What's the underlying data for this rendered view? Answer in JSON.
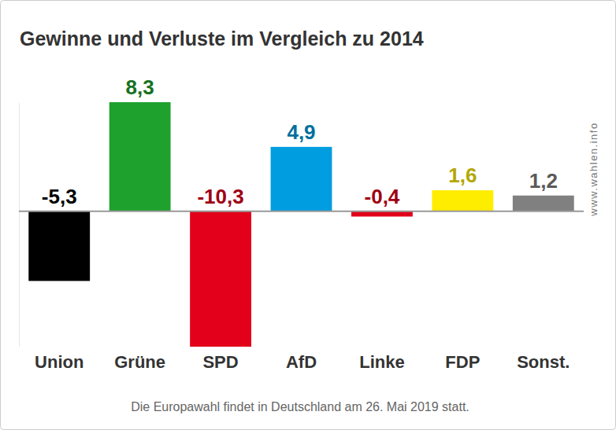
{
  "chart_data": {
    "type": "bar",
    "title": "Gewinne und Verluste im Vergleich zu 2014",
    "categories": [
      "Union",
      "Grüne",
      "SPD",
      "AfD",
      "Linke",
      "FDP",
      "Sonst."
    ],
    "values": [
      -5.3,
      8.3,
      -10.3,
      4.9,
      -0.4,
      1.6,
      1.2
    ],
    "value_labels": [
      "-5,3",
      "8,3",
      "-10,3",
      "4,9",
      "-0,4",
      "1,6",
      "1,2"
    ],
    "colors": [
      "#000000",
      "#1fa12e",
      "#e2001a",
      "#009ee0",
      "#e2001a",
      "#ffed00",
      "#808080"
    ],
    "ylim": [
      -10.3,
      8.3
    ],
    "yticks": [
      0
    ],
    "data_labels": true,
    "tick_labels": "x",
    "grid": false,
    "annotations": [
      "Die Europawahl findet in Deutschland am 26. Mai 2019 statt.",
      "www.wahlen.info"
    ]
  }
}
